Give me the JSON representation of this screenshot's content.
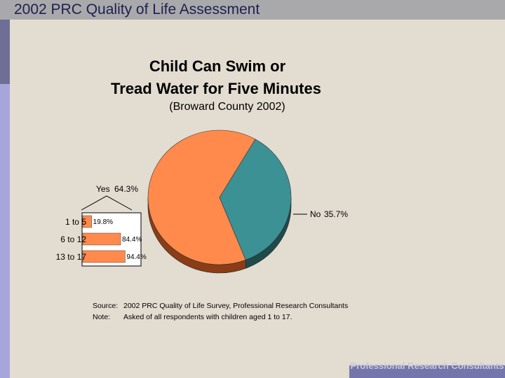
{
  "header": {
    "title": "2002 PRC Quality of Life Assessment"
  },
  "footer": {
    "text": "Professional Research Consultants"
  },
  "colors": {
    "header_bg": "#a9a9ab",
    "header_text": "#1d2050",
    "accent_dark": "#6e6e96",
    "accent_light": "#a7a6dc",
    "yes": "#ff8a4c",
    "yes_side": "#8a3d16",
    "no": "#3c9194",
    "no_side": "#1f4a4c"
  },
  "chart_data": [
    {
      "type": "pie",
      "title_line1": "Child Can Swim or",
      "title_line2": "Tread Water for Five Minutes",
      "subtitle": "(Broward County 2002)",
      "slices": [
        {
          "label": "Yes",
          "value_label": "64.3%",
          "value": 64.3
        },
        {
          "label": "No",
          "value_label": "35.7%",
          "value": 35.7
        }
      ]
    },
    {
      "type": "bar",
      "orientation": "horizontal",
      "categories": [
        "1 to 5",
        "6 to 12",
        "13 to 17"
      ],
      "values": [
        19.8,
        84.4,
        94.4
      ],
      "value_labels": [
        "19.8%",
        "84.4%",
        "94.4%"
      ],
      "xlim": [
        0,
        100
      ]
    }
  ],
  "notes": {
    "source_label": "Source:",
    "source_text": "2002 PRC Quality of Life Survey, Professional Research Consultants",
    "note_label": "Note:",
    "note_text": "Asked of all respondents with children aged 1 to 17."
  }
}
